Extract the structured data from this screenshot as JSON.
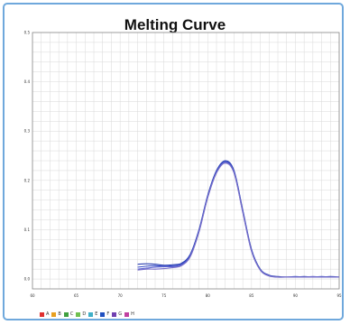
{
  "chart_data": {
    "type": "line",
    "title": "Melting Curve",
    "xlim": [
      60,
      95
    ],
    "ylim": [
      -0.02,
      0.5
    ],
    "x_ticks": [
      "60",
      "65",
      "70",
      "75",
      "80",
      "85",
      "90",
      "95"
    ],
    "y_ticks": [
      "0.0",
      "0.1",
      "0.2",
      "0.3",
      "0.4",
      "0.5"
    ],
    "x_tick_values": [
      60,
      65,
      70,
      75,
      80,
      85,
      90,
      95
    ],
    "y_tick_values": [
      0.0,
      0.1,
      0.2,
      0.3,
      0.4,
      0.5
    ],
    "grid": true,
    "legend": [
      {
        "label": "A",
        "color": "#e03030"
      },
      {
        "label": "B",
        "color": "#e8a020"
      },
      {
        "label": "C",
        "color": "#40a040"
      },
      {
        "label": "D",
        "color": "#70c050"
      },
      {
        "label": "E",
        "color": "#40b0c8"
      },
      {
        "label": "F",
        "color": "#2050c0"
      },
      {
        "label": "G",
        "color": "#7040b0"
      },
      {
        "label": "H",
        "color": "#c040a0"
      }
    ],
    "series": [
      {
        "color": "#2b3fb0",
        "x": [
          72,
          73,
          74,
          75,
          76,
          77,
          78,
          79,
          80,
          81,
          82,
          83,
          84,
          85,
          86,
          87,
          88,
          89,
          90,
          91,
          92,
          93,
          94,
          95
        ],
        "y": [
          0.03,
          0.031,
          0.03,
          0.028,
          0.029,
          0.032,
          0.05,
          0.1,
          0.17,
          0.22,
          0.24,
          0.22,
          0.14,
          0.06,
          0.02,
          0.008,
          0.005,
          0.004,
          0.004,
          0.005,
          0.004,
          0.004,
          0.005,
          0.004
        ]
      },
      {
        "color": "#3a4fc8",
        "x": [
          72,
          73,
          74,
          75,
          76,
          77,
          78,
          79,
          80,
          81,
          82,
          83,
          84,
          85,
          86,
          87,
          88,
          89,
          90,
          91,
          92,
          93,
          94,
          95
        ],
        "y": [
          0.024,
          0.026,
          0.027,
          0.026,
          0.027,
          0.03,
          0.048,
          0.098,
          0.168,
          0.218,
          0.238,
          0.218,
          0.138,
          0.058,
          0.019,
          0.007,
          0.004,
          0.004,
          0.005,
          0.004,
          0.004,
          0.005,
          0.004,
          0.004
        ]
      },
      {
        "color": "#5a60d0",
        "x": [
          72,
          73,
          74,
          75,
          76,
          77,
          78,
          79,
          80,
          81,
          82,
          83,
          84,
          85,
          86,
          87,
          88,
          89,
          90,
          91,
          92,
          93,
          94,
          95
        ],
        "y": [
          0.02,
          0.022,
          0.024,
          0.025,
          0.025,
          0.028,
          0.046,
          0.096,
          0.166,
          0.216,
          0.236,
          0.216,
          0.136,
          0.057,
          0.018,
          0.007,
          0.004,
          0.004,
          0.004,
          0.004,
          0.005,
          0.004,
          0.004,
          0.004
        ]
      },
      {
        "color": "#7a70c8",
        "x": [
          72,
          73,
          74,
          75,
          76,
          77,
          78,
          79,
          80,
          81,
          82,
          83,
          84,
          85,
          86,
          87,
          88,
          89,
          90,
          91,
          92,
          93,
          94,
          95
        ],
        "y": [
          0.018,
          0.02,
          0.02,
          0.021,
          0.023,
          0.027,
          0.045,
          0.095,
          0.165,
          0.215,
          0.235,
          0.215,
          0.135,
          0.056,
          0.018,
          0.006,
          0.004,
          0.004,
          0.004,
          0.004,
          0.004,
          0.004,
          0.004,
          0.004
        ]
      }
    ]
  }
}
